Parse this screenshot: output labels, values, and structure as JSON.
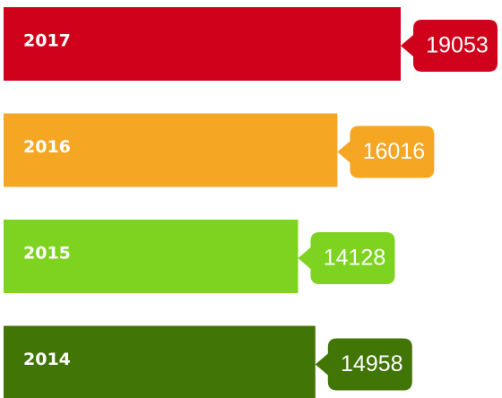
{
  "chart_data": {
    "type": "bar",
    "orientation": "horizontal",
    "categories": [
      "2017",
      "2016",
      "2015",
      "2014"
    ],
    "values": [
      19053,
      16016,
      14128,
      14958
    ],
    "colors": [
      "#d0011b",
      "#f5a623",
      "#7ed321",
      "#417505"
    ]
  }
}
